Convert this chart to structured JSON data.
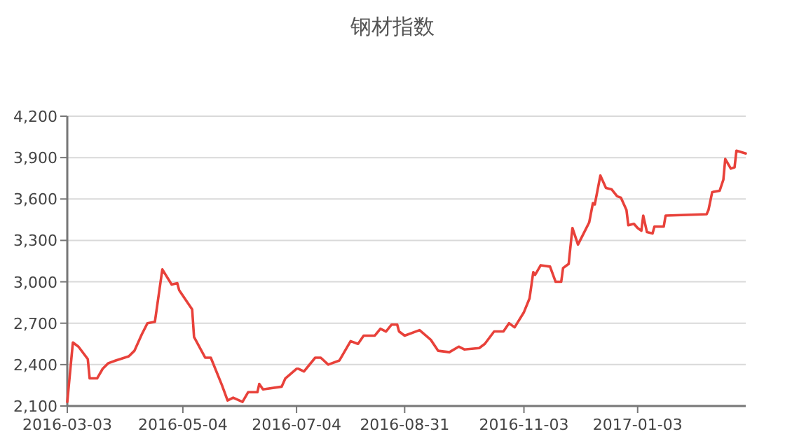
{
  "chart_data": {
    "type": "line",
    "title": "钢材指数",
    "color": "#e8413a",
    "x": [
      "2016-03-03",
      "2016-03-06",
      "2016-03-09",
      "2016-03-14",
      "2016-03-15",
      "2016-03-19",
      "2016-03-22",
      "2016-03-25",
      "2016-03-29",
      "2016-04-05",
      "2016-04-08",
      "2016-04-12",
      "2016-04-15",
      "2016-04-19",
      "2016-04-23",
      "2016-04-28",
      "2016-05-01",
      "2016-05-02",
      "2016-05-09",
      "2016-05-10",
      "2016-05-16",
      "2016-05-19",
      "2016-05-25",
      "2016-05-28",
      "2016-05-31",
      "2016-06-05",
      "2016-06-08",
      "2016-06-13",
      "2016-06-14",
      "2016-06-16",
      "2016-06-26",
      "2016-06-28",
      "2016-07-04",
      "2016-07-05",
      "2016-07-08",
      "2016-07-14",
      "2016-07-17",
      "2016-07-21",
      "2016-07-27",
      "2016-07-30",
      "2016-08-02",
      "2016-08-06",
      "2016-08-09",
      "2016-08-15",
      "2016-08-18",
      "2016-08-21",
      "2016-08-24",
      "2016-08-27",
      "2016-08-28",
      "2016-08-31",
      "2016-09-08",
      "2016-09-14",
      "2016-09-18",
      "2016-09-24",
      "2016-09-29",
      "2016-10-02",
      "2016-10-10",
      "2016-10-13",
      "2016-10-18",
      "2016-10-23",
      "2016-10-26",
      "2016-10-29",
      "2016-11-03",
      "2016-11-06",
      "2016-11-08",
      "2016-11-09",
      "2016-11-12",
      "2016-11-17",
      "2016-11-20",
      "2016-11-23",
      "2016-11-24",
      "2016-11-27",
      "2016-11-29",
      "2016-12-02",
      "2016-12-05",
      "2016-12-08",
      "2016-12-10",
      "2016-12-11",
      "2016-12-14",
      "2016-12-17",
      "2016-12-20",
      "2016-12-23",
      "2016-12-25",
      "2016-12-28",
      "2016-12-29",
      "2017-01-01",
      "2017-01-03",
      "2017-01-05",
      "2017-01-06",
      "2017-01-08",
      "2017-01-11",
      "2017-01-12",
      "2017-01-17",
      "2017-01-18",
      "2017-02-09",
      "2017-02-10",
      "2017-02-12",
      "2017-02-16",
      "2017-02-18",
      "2017-02-19",
      "2017-02-22",
      "2017-02-24",
      "2017-02-25",
      "2017-03-02"
    ],
    "values": [
      2130,
      2560,
      2530,
      2440,
      2300,
      2300,
      2370,
      2410,
      2430,
      2460,
      2500,
      2620,
      2700,
      2710,
      3090,
      2980,
      2990,
      2940,
      2800,
      2600,
      2450,
      2450,
      2250,
      2140,
      2160,
      2130,
      2200,
      2200,
      2260,
      2220,
      2240,
      2300,
      2370,
      2370,
      2350,
      2450,
      2450,
      2400,
      2430,
      2500,
      2570,
      2550,
      2610,
      2610,
      2660,
      2640,
      2690,
      2690,
      2640,
      2610,
      2650,
      2580,
      2500,
      2490,
      2530,
      2510,
      2520,
      2550,
      2640,
      2640,
      2700,
      2670,
      2780,
      2880,
      3070,
      3050,
      3120,
      3110,
      3000,
      3000,
      3100,
      3130,
      3390,
      3270,
      3350,
      3430,
      3570,
      3560,
      3770,
      3680,
      3670,
      3620,
      3610,
      3520,
      3410,
      3420,
      3390,
      3370,
      3480,
      3360,
      3350,
      3400,
      3400,
      3480,
      3490,
      3520,
      3650,
      3660,
      3740,
      3890,
      3820,
      3830,
      3950,
      3930
    ],
    "xlim": [
      "2016-03-03",
      "2017-03-02"
    ],
    "xticks": [
      "2016-03-03",
      "2016-05-04",
      "2016-07-04",
      "2016-08-31",
      "2016-11-03",
      "2017-01-03"
    ],
    "ylim": [
      2100,
      4200
    ],
    "yticks": [
      {
        "value": 2100,
        "label": "2,100"
      },
      {
        "value": 2400,
        "label": "2,400"
      },
      {
        "value": 2700,
        "label": "2,700"
      },
      {
        "value": 3000,
        "label": "3,000"
      },
      {
        "value": 3300,
        "label": "3,300"
      },
      {
        "value": 3600,
        "label": "3,600"
      },
      {
        "value": 3900,
        "label": "3,900"
      },
      {
        "value": 4200,
        "label": "4,200"
      }
    ],
    "grid": "y"
  }
}
